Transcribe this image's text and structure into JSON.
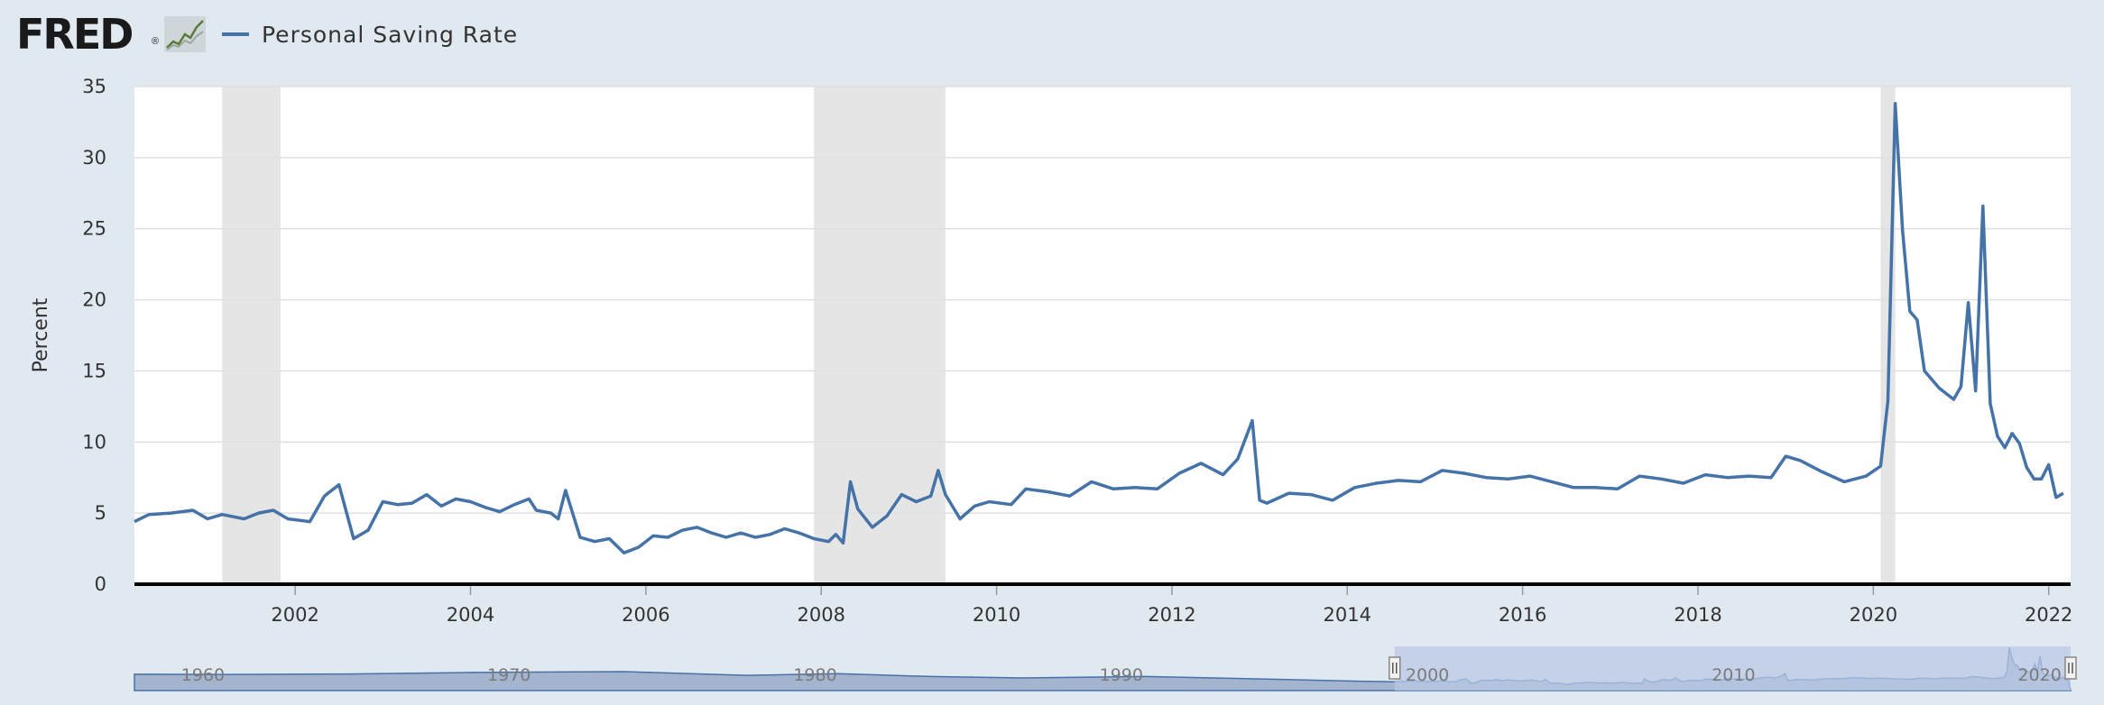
{
  "header": {
    "logo_text": "FRED",
    "logo_reg": "®",
    "logo_icon": "line-graph-icon"
  },
  "colors": {
    "series": "#4572a7",
    "recession": "#e5e5e5",
    "background": "#e1e9f0",
    "plot_background": "#ffffff",
    "gridline": "#e0e0e0",
    "navigator_mask": "#b9c8e6",
    "navigator_series": "#4572a7"
  },
  "chart_data": {
    "type": "line",
    "title": "",
    "xlabel": "",
    "ylabel": "Percent",
    "ylim": [
      0,
      35
    ],
    "yticks": [
      0,
      5,
      10,
      15,
      20,
      25,
      30,
      35
    ],
    "xlim": [
      "2000-03-01",
      "2022-04-01"
    ],
    "xticks": [
      "2002",
      "2004",
      "2006",
      "2008",
      "2010",
      "2012",
      "2014",
      "2016",
      "2018",
      "2020",
      "2022"
    ],
    "grid": true,
    "legend_position": "top-left",
    "recessions": [
      [
        "2001-03-01",
        "2001-11-01"
      ],
      [
        "2007-12-01",
        "2009-06-01"
      ],
      [
        "2020-02-01",
        "2020-04-01"
      ]
    ],
    "series": [
      {
        "name": "Personal Saving Rate",
        "points": [
          [
            "2000-03",
            4.4
          ],
          [
            "2000-05",
            4.9
          ],
          [
            "2000-08",
            5.0
          ],
          [
            "2000-11",
            5.2
          ],
          [
            "2001-01",
            4.6
          ],
          [
            "2001-03",
            4.9
          ],
          [
            "2001-06",
            4.6
          ],
          [
            "2001-08",
            5.0
          ],
          [
            "2001-10",
            5.2
          ],
          [
            "2001-12",
            4.6
          ],
          [
            "2002-03",
            4.4
          ],
          [
            "2002-05",
            6.2
          ],
          [
            "2002-07",
            7.0
          ],
          [
            "2002-09",
            3.2
          ],
          [
            "2002-11",
            3.8
          ],
          [
            "2003-01",
            5.8
          ],
          [
            "2003-03",
            5.6
          ],
          [
            "2003-05",
            5.7
          ],
          [
            "2003-07",
            6.3
          ],
          [
            "2003-09",
            5.5
          ],
          [
            "2003-11",
            6.0
          ],
          [
            "2004-01",
            5.8
          ],
          [
            "2004-03",
            5.4
          ],
          [
            "2004-05",
            5.1
          ],
          [
            "2004-07",
            5.6
          ],
          [
            "2004-09",
            6.0
          ],
          [
            "2004-10",
            5.2
          ],
          [
            "2004-12",
            5.0
          ],
          [
            "2005-01",
            4.6
          ],
          [
            "2005-02",
            6.6
          ],
          [
            "2005-04",
            3.3
          ],
          [
            "2005-06",
            3.0
          ],
          [
            "2005-08",
            3.2
          ],
          [
            "2005-10",
            2.2
          ],
          [
            "2005-12",
            2.6
          ],
          [
            "2006-02",
            3.4
          ],
          [
            "2006-04",
            3.3
          ],
          [
            "2006-06",
            3.8
          ],
          [
            "2006-08",
            4.0
          ],
          [
            "2006-10",
            3.6
          ],
          [
            "2006-12",
            3.3
          ],
          [
            "2007-02",
            3.6
          ],
          [
            "2007-04",
            3.3
          ],
          [
            "2007-06",
            3.5
          ],
          [
            "2007-08",
            3.9
          ],
          [
            "2007-10",
            3.6
          ],
          [
            "2007-12",
            3.2
          ],
          [
            "2008-02",
            3.0
          ],
          [
            "2008-03",
            3.5
          ],
          [
            "2008-04",
            2.9
          ],
          [
            "2008-05",
            7.2
          ],
          [
            "2008-06",
            5.3
          ],
          [
            "2008-08",
            4.0
          ],
          [
            "2008-10",
            4.8
          ],
          [
            "2008-12",
            6.3
          ],
          [
            "2009-02",
            5.8
          ],
          [
            "2009-04",
            6.2
          ],
          [
            "2009-05",
            8.0
          ],
          [
            "2009-06",
            6.3
          ],
          [
            "2009-08",
            4.6
          ],
          [
            "2009-10",
            5.5
          ],
          [
            "2009-12",
            5.8
          ],
          [
            "2010-03",
            5.6
          ],
          [
            "2010-05",
            6.7
          ],
          [
            "2010-08",
            6.5
          ],
          [
            "2010-11",
            6.2
          ],
          [
            "2011-02",
            7.2
          ],
          [
            "2011-05",
            6.7
          ],
          [
            "2011-08",
            6.8
          ],
          [
            "2011-11",
            6.7
          ],
          [
            "2012-02",
            7.8
          ],
          [
            "2012-05",
            8.5
          ],
          [
            "2012-08",
            7.7
          ],
          [
            "2012-10",
            8.8
          ],
          [
            "2012-12",
            11.5
          ],
          [
            "2013-01",
            5.9
          ],
          [
            "2013-02",
            5.7
          ],
          [
            "2013-05",
            6.4
          ],
          [
            "2013-08",
            6.3
          ],
          [
            "2013-11",
            5.9
          ],
          [
            "2014-02",
            6.8
          ],
          [
            "2014-05",
            7.1
          ],
          [
            "2014-08",
            7.3
          ],
          [
            "2014-11",
            7.2
          ],
          [
            "2015-02",
            8.0
          ],
          [
            "2015-05",
            7.8
          ],
          [
            "2015-08",
            7.5
          ],
          [
            "2015-11",
            7.4
          ],
          [
            "2016-02",
            7.6
          ],
          [
            "2016-05",
            7.2
          ],
          [
            "2016-08",
            6.8
          ],
          [
            "2016-11",
            6.8
          ],
          [
            "2017-02",
            6.7
          ],
          [
            "2017-05",
            7.6
          ],
          [
            "2017-08",
            7.4
          ],
          [
            "2017-11",
            7.1
          ],
          [
            "2018-02",
            7.7
          ],
          [
            "2018-05",
            7.5
          ],
          [
            "2018-08",
            7.6
          ],
          [
            "2018-11",
            7.5
          ],
          [
            "2019-01",
            9.0
          ],
          [
            "2019-03",
            8.7
          ],
          [
            "2019-06",
            7.9
          ],
          [
            "2019-09",
            7.2
          ],
          [
            "2019-12",
            7.6
          ],
          [
            "2020-02",
            8.3
          ],
          [
            "2020-03",
            12.9
          ],
          [
            "2020-04",
            33.8
          ],
          [
            "2020-05",
            24.9
          ],
          [
            "2020-06",
            19.2
          ],
          [
            "2020-07",
            18.6
          ],
          [
            "2020-08",
            15.0
          ],
          [
            "2020-10",
            13.8
          ],
          [
            "2020-12",
            13.0
          ],
          [
            "2021-01",
            13.9
          ],
          [
            "2021-02",
            19.8
          ],
          [
            "2021-03",
            13.6
          ],
          [
            "2021-04",
            26.6
          ],
          [
            "2021-05",
            12.7
          ],
          [
            "2021-06",
            10.4
          ],
          [
            "2021-07",
            9.6
          ],
          [
            "2021-08",
            10.6
          ],
          [
            "2021-09",
            9.9
          ],
          [
            "2021-10",
            8.2
          ],
          [
            "2021-11",
            7.4
          ],
          [
            "2021-12",
            7.4
          ],
          [
            "2022-01",
            8.4
          ],
          [
            "2022-02",
            6.1
          ],
          [
            "2022-03",
            6.4
          ]
        ]
      }
    ],
    "navigator": {
      "range": [
        "1959-01-01",
        "2022-04-01"
      ],
      "selected": [
        "2000-03-01",
        "2022-04-01"
      ],
      "labels": [
        "1960",
        "1970",
        "1980",
        "1990",
        "2000",
        "2010",
        "2020"
      ]
    }
  }
}
